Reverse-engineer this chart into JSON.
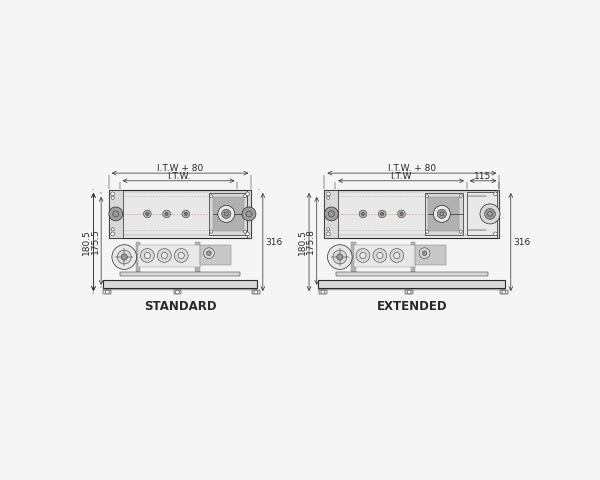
{
  "bg_color": "#f5f5f5",
  "line_color": "#2a2a2a",
  "dim_color": "#2a2a2a",
  "gray1": "#c8c8c8",
  "gray2": "#b0b0b0",
  "gray3": "#989898",
  "gray4": "#808080",
  "gray5": "#686868",
  "fill_body": "#d8d8d8",
  "fill_inner": "#e8e8e8",
  "fill_dark": "#a0a0a0",
  "fill_white": "#f8f8f8",
  "dashed_color": "#c0a080",
  "label_standard": "STANDARD",
  "label_extended": "EXTENDED",
  "dim_itw80_std": "I.T.W + 80",
  "dim_itw_std": "I.T.W.",
  "dim_itw80_ext": "I.T.W. + 80",
  "dim_itw_ext": "I.T.W",
  "dim_115": "115",
  "dim_180_5_std": "180.5",
  "dim_175_5_std": "175.5",
  "dim_316_std": "316",
  "dim_180_5_ext": "180.5",
  "dim_175_8_ext": "175.8",
  "dim_316_ext": "316",
  "font_size_dim": 6.5,
  "font_size_title": 8.5
}
